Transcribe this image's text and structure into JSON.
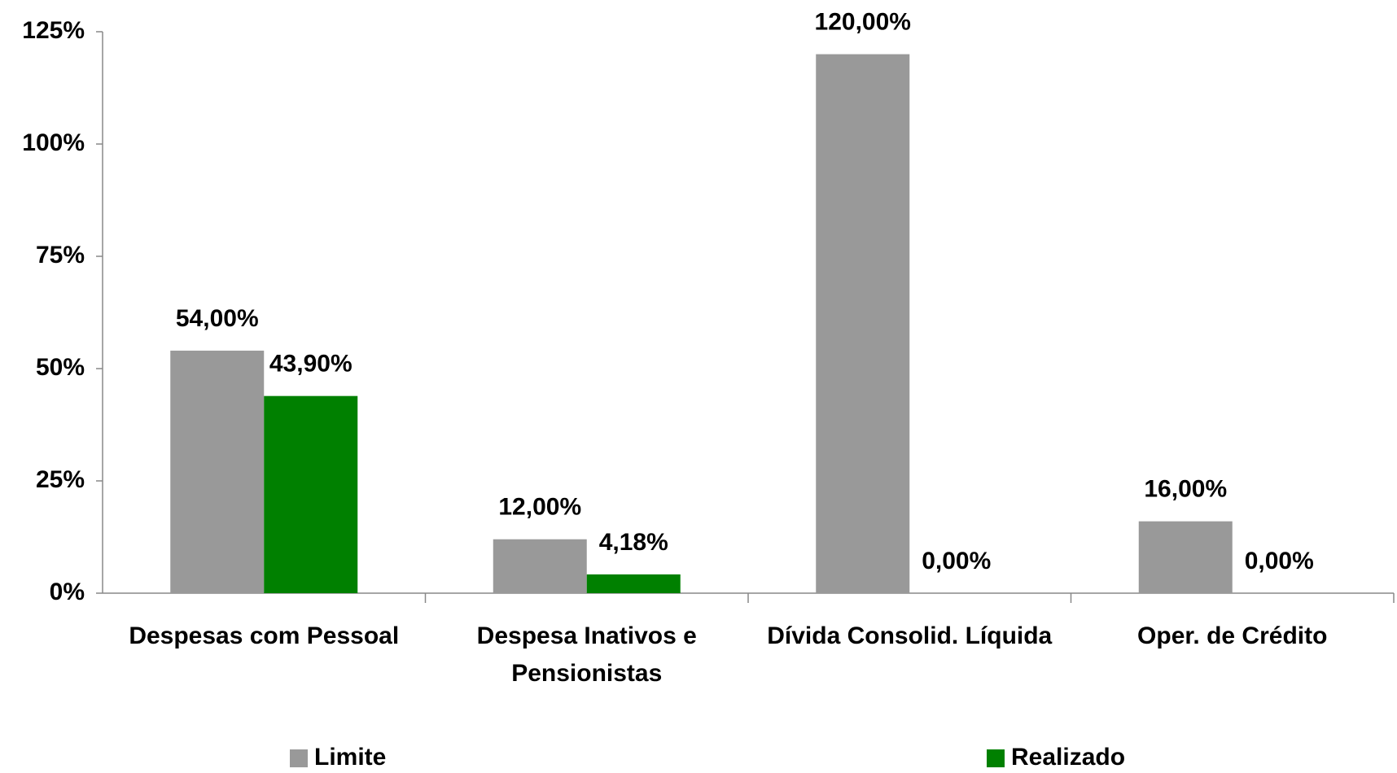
{
  "chart_data": {
    "type": "bar",
    "categories": [
      "Despesas com Pessoal",
      "Despesa Inativos e Pensionistas",
      "Dívida Consolid. Líquida",
      "Oper. de Crédito"
    ],
    "series": [
      {
        "name": "Limite",
        "color": "#999999",
        "values": [
          54,
          12,
          120,
          16
        ],
        "value_labels": [
          "54,00%",
          "12,00%",
          "120,00%",
          "16,00%"
        ]
      },
      {
        "name": "Realizado",
        "color": "#008000",
        "values": [
          43.9,
          4.18,
          0,
          0
        ],
        "value_labels": [
          "43,90%",
          "4,18%",
          "0,00%",
          "0,00%"
        ]
      }
    ],
    "ylim": [
      0,
      125
    ],
    "yticks": [
      {
        "value": 0,
        "label": "0%"
      },
      {
        "value": 25,
        "label": "25%"
      },
      {
        "value": 50,
        "label": "50%"
      },
      {
        "value": 75,
        "label": "75%"
      },
      {
        "value": 100,
        "label": "100%"
      },
      {
        "value": 125,
        "label": "125%"
      }
    ],
    "grid": false,
    "legend": "bottom"
  }
}
